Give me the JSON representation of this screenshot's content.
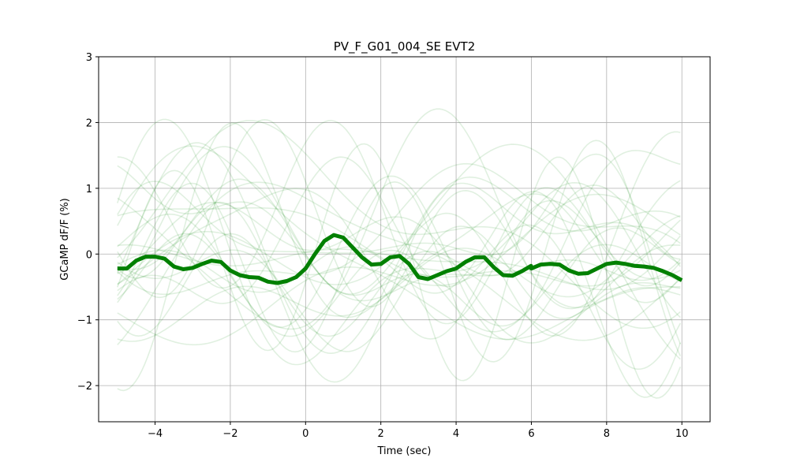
{
  "chart_data": {
    "type": "line",
    "title": "PV_F_G01_004_SE EVT2",
    "xlabel": "Time (sec)",
    "ylabel": "GCaMP dF/F (%)",
    "xlim": [
      -5.5,
      10.75
    ],
    "ylim": [
      -2.55,
      3.0
    ],
    "xticks": [
      -4,
      -2,
      0,
      2,
      4,
      6,
      8,
      10
    ],
    "xtick_labels": [
      "−4",
      "−2",
      "0",
      "2",
      "4",
      "6",
      "8",
      "10"
    ],
    "yticks": [
      -2,
      -1,
      0,
      1,
      2,
      3
    ],
    "ytick_labels": [
      "−2",
      "−1",
      "0",
      "1",
      "2",
      "3"
    ],
    "grid": true,
    "legend": "none",
    "colors": {
      "mean": "#008000",
      "trials": "#008000"
    },
    "series": [
      {
        "role": "mean",
        "x": [
          -5.0,
          -4.75,
          -4.5,
          -4.25,
          -4.0,
          -3.75,
          -3.5,
          -3.25,
          -3.0,
          -2.75,
          -2.5,
          -2.25,
          -2.0,
          -1.75,
          -1.5,
          -1.25,
          -1.0,
          -0.75,
          -0.5,
          -0.25,
          0.0,
          0.25,
          0.5,
          0.75,
          1.0,
          1.25,
          1.5,
          1.75,
          2.0,
          2.25,
          2.5,
          2.75,
          3.0,
          3.25,
          3.5,
          3.75,
          4.0,
          4.25,
          4.5,
          4.75,
          5.0,
          5.25,
          5.5,
          5.75,
          5.99,
          6.0,
          6.25,
          6.5,
          6.75,
          7.0,
          7.25,
          7.5,
          7.75,
          8.0,
          8.25,
          8.5,
          8.75,
          9.0,
          9.25,
          9.5,
          9.75,
          10.0
        ],
        "y": [
          -0.22,
          -0.22,
          -0.1,
          -0.04,
          -0.04,
          -0.07,
          -0.19,
          -0.23,
          -0.21,
          -0.15,
          -0.1,
          -0.12,
          -0.25,
          -0.32,
          -0.35,
          -0.36,
          -0.42,
          -0.44,
          -0.41,
          -0.35,
          -0.22,
          0.0,
          0.2,
          0.29,
          0.25,
          0.1,
          -0.05,
          -0.16,
          -0.15,
          -0.05,
          -0.03,
          -0.15,
          -0.35,
          -0.38,
          -0.32,
          -0.26,
          -0.22,
          -0.12,
          -0.05,
          -0.05,
          -0.2,
          -0.32,
          -0.33,
          -0.26,
          -0.18,
          -0.22,
          -0.16,
          -0.15,
          -0.16,
          -0.25,
          -0.3,
          -0.29,
          -0.22,
          -0.15,
          -0.13,
          -0.15,
          -0.18,
          -0.19,
          -0.21,
          -0.26,
          -0.32,
          -0.4
        ]
      }
    ],
    "trial_count": 30
  }
}
